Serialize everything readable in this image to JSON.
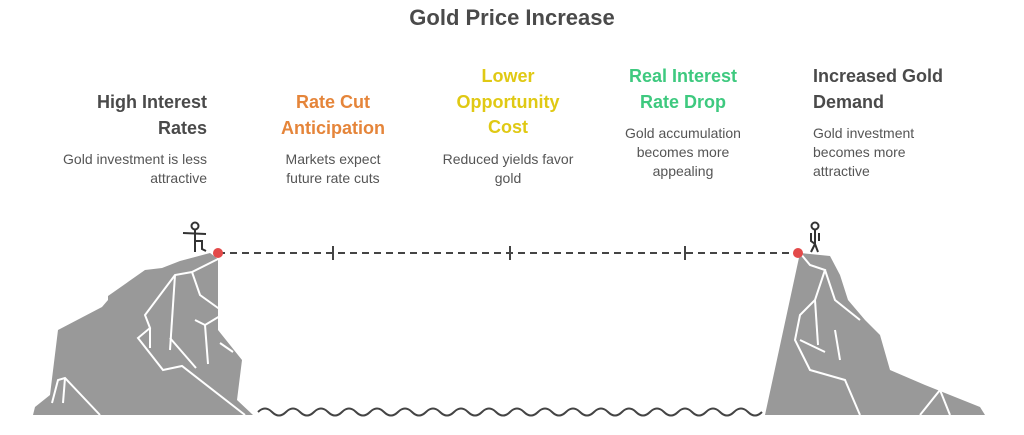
{
  "title": "Gold Price Increase",
  "colors": {
    "dark": "#4a4a4a",
    "orange": "#e5853a",
    "yellow": "#e0c914",
    "green": "#3ec97f",
    "rock": "#999999",
    "marker": "#e34a4a"
  },
  "stages": [
    {
      "title": "High Interest Rates",
      "description": "Gold investment is less attractive"
    },
    {
      "title": "Rate Cut Anticipation",
      "description": "Markets expect future rate cuts"
    },
    {
      "title": "Lower Opportunity Cost",
      "description": "Reduced yields favor gold"
    },
    {
      "title": "Real Interest Rate Drop",
      "description": "Gold accumulation becomes more appealing"
    },
    {
      "title": "Increased Gold Demand",
      "description": "Gold investment becomes more attractive"
    }
  ]
}
